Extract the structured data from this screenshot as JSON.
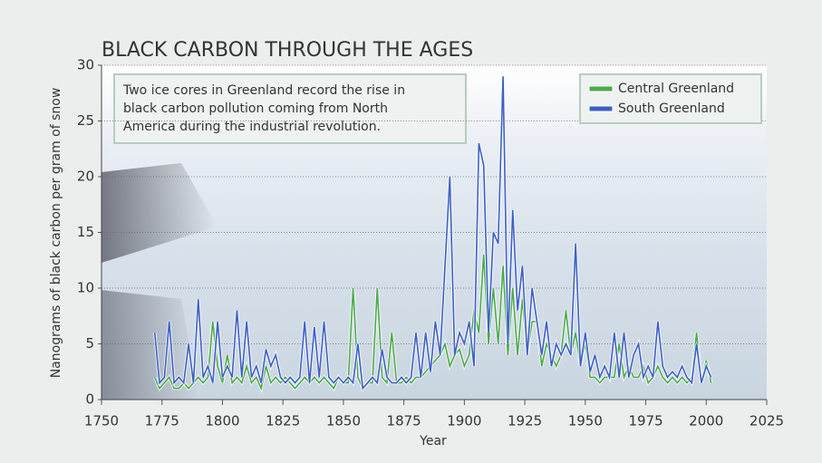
{
  "chart_data": {
    "type": "line",
    "title": "BLACK CARBON THROUGH THE AGES",
    "x_label": "Year",
    "y_label": "Nanograms of black carbon per gram of snow",
    "annotation": [
      "Two ice cores in Greenland record the rise in",
      "black carbon pollution coming from North",
      "America during the industrial revolution."
    ],
    "x": [
      1772,
      1774,
      1776,
      1778,
      1780,
      1782,
      1784,
      1786,
      1788,
      1790,
      1792,
      1794,
      1796,
      1798,
      1800,
      1802,
      1804,
      1806,
      1808,
      1810,
      1812,
      1814,
      1816,
      1818,
      1820,
      1822,
      1824,
      1826,
      1828,
      1830,
      1832,
      1834,
      1836,
      1838,
      1840,
      1842,
      1844,
      1846,
      1848,
      1850,
      1852,
      1854,
      1856,
      1858,
      1860,
      1862,
      1864,
      1866,
      1868,
      1870,
      1872,
      1874,
      1876,
      1878,
      1880,
      1882,
      1884,
      1886,
      1888,
      1890,
      1892,
      1894,
      1896,
      1898,
      1900,
      1902,
      1904,
      1906,
      1908,
      1910,
      1912,
      1914,
      1916,
      1918,
      1920,
      1922,
      1924,
      1926,
      1928,
      1930,
      1932,
      1934,
      1936,
      1938,
      1940,
      1942,
      1944,
      1946,
      1948,
      1950,
      1952,
      1954,
      1956,
      1958,
      1960,
      1962,
      1964,
      1966,
      1968,
      1970,
      1972,
      1974,
      1976,
      1978,
      1980,
      1982,
      1984,
      1986,
      1988,
      1990,
      1992,
      1994,
      1996,
      1998,
      2000,
      2002
    ],
    "series": [
      {
        "name": "Central Greenland",
        "color": "#4caa4a",
        "values": [
          2,
          1,
          1.5,
          2,
          1,
          1,
          1.5,
          1,
          1.5,
          2,
          1.5,
          2,
          7,
          3,
          1.5,
          4,
          1.5,
          2,
          1.5,
          3,
          1.5,
          2,
          1,
          3,
          1.5,
          2,
          1.5,
          2,
          1.5,
          1,
          1.5,
          2,
          1.5,
          2,
          1.5,
          2,
          1.5,
          1,
          2,
          1.5,
          1.5,
          10,
          2,
          1,
          1.5,
          1.5,
          10,
          2,
          1.5,
          6,
          1.5,
          1.5,
          2,
          1.5,
          2,
          2,
          2.5,
          3,
          3.5,
          4,
          5,
          3,
          4,
          4.5,
          3,
          4,
          8,
          6,
          13,
          5,
          10,
          5,
          12,
          4,
          10,
          4,
          9,
          4,
          7,
          7,
          3,
          5,
          4,
          3,
          4,
          8,
          4,
          6,
          3,
          5,
          2,
          2,
          1.5,
          2,
          2,
          2,
          5,
          2,
          3,
          2,
          2,
          3,
          1.5,
          2,
          3,
          2,
          1.5,
          2,
          1.5,
          2,
          1.5,
          2,
          6,
          1.5,
          3.5,
          1.5
        ]
      },
      {
        "name": "South Greenland",
        "color": "#3d5fc6",
        "values": [
          6,
          1.5,
          2,
          7,
          1.5,
          2,
          1.5,
          5,
          1.5,
          9,
          2,
          3,
          1.5,
          7,
          2,
          3,
          2,
          8,
          2,
          7,
          2,
          3,
          1.5,
          4.5,
          3,
          4,
          2,
          1.5,
          2,
          1.5,
          2,
          7,
          1.5,
          6.5,
          2,
          7,
          2,
          1.5,
          2,
          1.5,
          2,
          1.5,
          5,
          1,
          1.5,
          2,
          1.5,
          4.5,
          2,
          1.5,
          1.5,
          2,
          1.5,
          2,
          6,
          2,
          6,
          2.5,
          7,
          4,
          12,
          20,
          4,
          6,
          5,
          7,
          3,
          23,
          21,
          6,
          15,
          14,
          29,
          5,
          17,
          8,
          12,
          4,
          10,
          7,
          4,
          7,
          3,
          5,
          4,
          5,
          4,
          14,
          3,
          6,
          2.5,
          4,
          2,
          3,
          2,
          6,
          2,
          6,
          2,
          4,
          5,
          2,
          3,
          2,
          7,
          3,
          2,
          2.5,
          2,
          3,
          2,
          1.5,
          5,
          1.5,
          3,
          2
        ]
      }
    ],
    "xlim": [
      1750,
      2025
    ],
    "xticks": [
      1750,
      1775,
      1800,
      1825,
      1850,
      1875,
      1900,
      1925,
      1950,
      1975,
      2000,
      2025
    ],
    "ylim": [
      0,
      30
    ],
    "yticks": [
      0,
      5,
      10,
      15,
      20,
      25,
      30
    ],
    "grid": true,
    "legend": "top-right"
  }
}
